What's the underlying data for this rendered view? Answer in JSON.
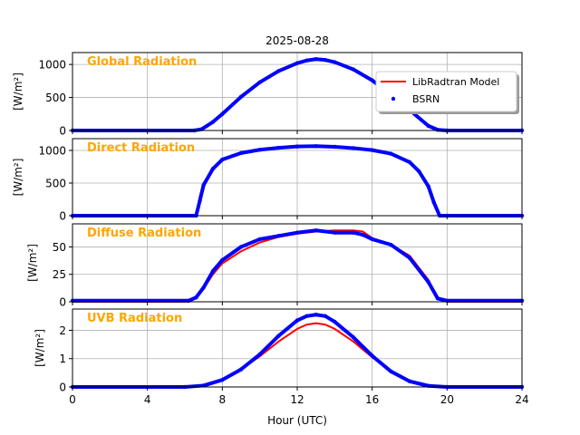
{
  "figure": {
    "title": "2025-08-28",
    "xlabel": "Hour (UTC)",
    "xlim": [
      0,
      24
    ],
    "xticks": [
      0,
      4,
      8,
      12,
      16,
      20,
      24
    ],
    "grid": true,
    "colors": {
      "model": "#ff0000",
      "bsrn": "#0000ff",
      "panel_title": "#ffa500",
      "grid": "#b0b0b0"
    }
  },
  "legend": {
    "placement": "top-right of first panel",
    "items": [
      {
        "label": "LibRadtran Model",
        "color": "#ff0000",
        "marker": "line"
      },
      {
        "label": "BSRN",
        "color": "#0000ff",
        "marker": "dot"
      }
    ]
  },
  "chart_data": [
    {
      "type": "line",
      "panel_title": "Global Radiation",
      "ylabel": "[W/m²]",
      "ylim": [
        0,
        1180
      ],
      "yticks": [
        0,
        500,
        1000
      ],
      "x": [
        0,
        6.5,
        6.9,
        7.5,
        8,
        9,
        10,
        11,
        12,
        12.5,
        13,
        13.5,
        14,
        15,
        16,
        17,
        18,
        19,
        19.5,
        20,
        24
      ],
      "series": [
        {
          "name": "LibRadtran Model",
          "values": [
            0,
            0,
            20,
            130,
            250,
            510,
            730,
            900,
            1020,
            1055,
            1075,
            1060,
            1030,
            920,
            760,
            540,
            310,
            70,
            10,
            0,
            0
          ]
        },
        {
          "name": "BSRN",
          "values": [
            0,
            0,
            20,
            130,
            250,
            510,
            730,
            900,
            1020,
            1060,
            1080,
            1068,
            1035,
            925,
            760,
            540,
            310,
            70,
            10,
            0,
            0
          ]
        }
      ]
    },
    {
      "type": "line",
      "panel_title": "Direct Radiation",
      "ylabel": "[W/m²]",
      "ylim": [
        0,
        1180
      ],
      "yticks": [
        0,
        500,
        1000
      ],
      "x": [
        0,
        6.6,
        6.8,
        7,
        7.5,
        8,
        9,
        10,
        11,
        12,
        13,
        14,
        15,
        16,
        17,
        18,
        18.5,
        19,
        19.3,
        19.6,
        20,
        24
      ],
      "series": [
        {
          "name": "LibRadtran Model",
          "values": [
            0,
            0,
            300,
            500,
            720,
            860,
            960,
            1010,
            1040,
            1060,
            1065,
            1055,
            1035,
            1005,
            950,
            820,
            680,
            450,
            200,
            0,
            0,
            0
          ]
        },
        {
          "name": "BSRN",
          "values": [
            0,
            0,
            230,
            470,
            720,
            860,
            960,
            1010,
            1040,
            1060,
            1065,
            1055,
            1035,
            1005,
            950,
            820,
            680,
            450,
            200,
            0,
            0,
            0
          ]
        }
      ]
    },
    {
      "type": "line",
      "panel_title": "Diffuse Radiation",
      "ylabel": "[W/m²]",
      "ylim": [
        0,
        71
      ],
      "yticks": [
        0,
        25,
        50
      ],
      "x": [
        0,
        6.2,
        6.6,
        7,
        7.5,
        8,
        9,
        10,
        11,
        12,
        13,
        14,
        15,
        15.5,
        16,
        17,
        18,
        19,
        19.5,
        20,
        24
      ],
      "series": [
        {
          "name": "LibRadtran Model",
          "values": [
            0,
            0,
            3,
            12,
            25,
            35,
            46,
            54,
            59,
            62,
            64,
            65,
            65,
            64,
            58,
            52,
            42,
            20,
            3,
            0,
            0
          ]
        },
        {
          "name": "BSRN",
          "values": [
            1,
            1,
            4,
            13,
            28,
            38,
            50,
            57,
            60,
            63,
            65,
            63,
            63,
            61,
            57,
            52,
            40,
            18,
            3,
            1,
            1
          ]
        }
      ]
    },
    {
      "type": "line",
      "panel_title": "UVB Radiation",
      "ylabel": "[W/m²]",
      "ylim": [
        0,
        2.75
      ],
      "yticks": [
        0,
        1,
        2
      ],
      "x": [
        0,
        6,
        7,
        8,
        9,
        10,
        11,
        12,
        12.5,
        13,
        13.5,
        14,
        15,
        16,
        17,
        18,
        19,
        20,
        24
      ],
      "series": [
        {
          "name": "LibRadtran Model",
          "values": [
            0,
            0,
            0.05,
            0.25,
            0.62,
            1.08,
            1.6,
            2.05,
            2.2,
            2.25,
            2.2,
            2.05,
            1.6,
            1.05,
            0.55,
            0.2,
            0.04,
            0,
            0
          ]
        },
        {
          "name": "BSRN",
          "values": [
            0,
            0,
            0.05,
            0.25,
            0.62,
            1.15,
            1.8,
            2.35,
            2.5,
            2.55,
            2.5,
            2.3,
            1.75,
            1.1,
            0.55,
            0.2,
            0.04,
            0,
            0
          ]
        }
      ]
    }
  ]
}
